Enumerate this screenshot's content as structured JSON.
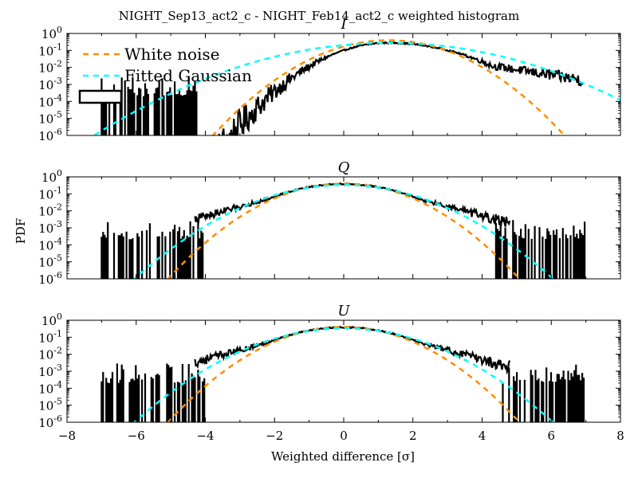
{
  "figure": {
    "suptitle": "NIGHT_Sep13_act2_c - NIGHT_Feb14_act2_c weighted histogram",
    "ylabel": "PDF",
    "xlabel": "Weighted difference [σ]"
  },
  "colors": {
    "histogram": "#000000",
    "white_noise": "#ff8c00",
    "fitted_gaussian": "#00ffff"
  },
  "legend": {
    "entries": [
      {
        "label": "White noise",
        "color": "#ff8c00",
        "style": "dashed"
      },
      {
        "label": "Fitted Gaussian",
        "color": "#00ffff",
        "style": "dashed"
      },
      {
        "label": "",
        "color": "#000000",
        "style": "box"
      }
    ],
    "placement": "upper-left"
  },
  "chart_data": [
    {
      "type": "line",
      "title": "I",
      "xlim": [
        -8,
        8
      ],
      "ylim": [
        -6,
        0
      ],
      "yscale": "log",
      "x_ticks": [
        "−8",
        "−6",
        "−4",
        "−2",
        "0",
        "2",
        "4",
        "6",
        "8"
      ],
      "y_ticks": [
        {
          "base": "10",
          "exp": "0"
        },
        {
          "base": "10",
          "exp": "-1"
        },
        {
          "base": "10",
          "exp": "-2"
        },
        {
          "base": "10",
          "exp": "-3"
        },
        {
          "base": "10",
          "exp": "-4"
        },
        {
          "base": "10",
          "exp": "-5"
        },
        {
          "base": "10",
          "exp": "-6"
        }
      ],
      "histogram": {
        "range": [
          -7,
          7
        ],
        "peak_x": 1.3,
        "peak_log10": -0.55,
        "dense_from": -4.2,
        "dense_to": 6.95,
        "left_slope": 0.48,
        "right_slope": 0.36,
        "sparse_left_range": [
          -7,
          -4.2
        ],
        "sparse_floor_log10": -3.4
      },
      "white_noise": {
        "mu": 1.3,
        "sigma": 1.0,
        "amp": 0.4
      },
      "fitted_gaussian": {
        "mu": 1.3,
        "sigma": 1.7,
        "amp": 0.28
      }
    },
    {
      "type": "line",
      "title": "Q",
      "xlim": [
        -8,
        8
      ],
      "ylim": [
        -6,
        0
      ],
      "yscale": "log",
      "x_ticks": [
        "−8",
        "−6",
        "−4",
        "−2",
        "0",
        "2",
        "4",
        "6",
        "8"
      ],
      "y_ticks": [
        {
          "base": "10",
          "exp": "0"
        },
        {
          "base": "10",
          "exp": "-1"
        },
        {
          "base": "10",
          "exp": "-2"
        },
        {
          "base": "10",
          "exp": "-3"
        },
        {
          "base": "10",
          "exp": "-4"
        },
        {
          "base": "10",
          "exp": "-5"
        },
        {
          "base": "10",
          "exp": "-6"
        }
      ],
      "histogram": {
        "range": [
          -7,
          7
        ],
        "peak_x": 0.0,
        "peak_log10": -0.5,
        "dense_from": -4.3,
        "dense_to": 4.8,
        "sparse_left_range": [
          -7,
          -4.0
        ],
        "sparse_right_range": [
          4.4,
          7
        ],
        "sparse_floor_log10": -3.4
      },
      "white_noise": {
        "mu": 0.0,
        "sigma": 1.0,
        "amp": 0.4
      },
      "fitted_gaussian": {
        "mu": 0.0,
        "sigma": 1.2,
        "amp": 0.33
      }
    },
    {
      "type": "line",
      "title": "U",
      "xlim": [
        -8,
        8
      ],
      "ylim": [
        -6,
        0
      ],
      "yscale": "log",
      "x_ticks": [
        "−8",
        "−6",
        "−4",
        "−2",
        "0",
        "2",
        "4",
        "6",
        "8"
      ],
      "y_ticks": [
        {
          "base": "10",
          "exp": "0"
        },
        {
          "base": "10",
          "exp": "-1"
        },
        {
          "base": "10",
          "exp": "-2"
        },
        {
          "base": "10",
          "exp": "-3"
        },
        {
          "base": "10",
          "exp": "-4"
        },
        {
          "base": "10",
          "exp": "-5"
        },
        {
          "base": "10",
          "exp": "-6"
        }
      ],
      "histogram": {
        "range": [
          -7,
          7
        ],
        "peak_x": 0.0,
        "peak_log10": -0.5,
        "dense_from": -4.3,
        "dense_to": 4.8,
        "sparse_left_range": [
          -7,
          -4.0
        ],
        "sparse_right_range": [
          4.6,
          7
        ],
        "sparse_floor_log10": -3.4
      },
      "white_noise": {
        "mu": 0.0,
        "sigma": 1.0,
        "amp": 0.4
      },
      "fitted_gaussian": {
        "mu": 0.0,
        "sigma": 1.2,
        "amp": 0.33
      }
    }
  ]
}
